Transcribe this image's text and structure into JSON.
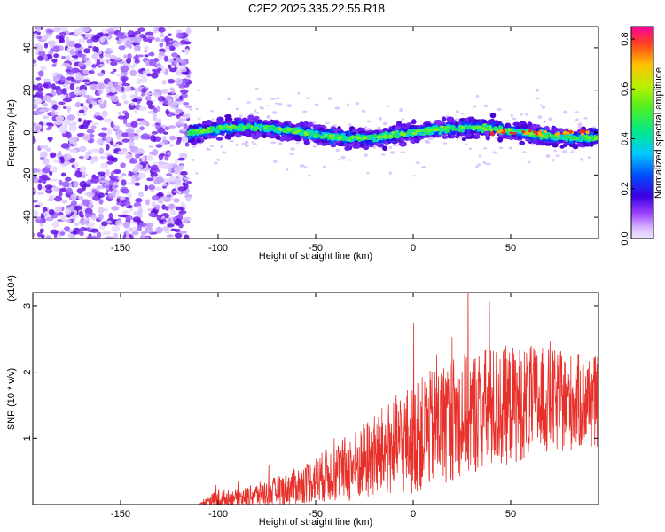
{
  "title": "C2E2.2025.335.22.55.R18",
  "colors": {
    "snr_line": "#e8302a",
    "spectrum_high": "#e8302a",
    "spectrum_mid": "#20d060",
    "spectrum_low": "#5000d8"
  },
  "chart_data": [
    {
      "type": "heatmap",
      "xlabel": "Height of straight line (km)",
      "ylabel": "Frequency (Hz)",
      "xlim": [
        -195,
        95
      ],
      "ylim": [
        -50,
        50
      ],
      "x_ticks": [
        -150,
        -100,
        -50,
        0,
        50
      ],
      "y_ticks": [
        -40,
        -20,
        0,
        20,
        40
      ],
      "noise_region_x": [
        -195,
        -115
      ],
      "signal_band_center_hz": 0,
      "colorbar": {
        "label": "Normalized spectral amplitude",
        "range": [
          0,
          0.85
        ],
        "ticks": [
          "0.0",
          "0.2",
          "0.4",
          "0.6",
          "0.8"
        ]
      },
      "grid": false
    },
    {
      "type": "line",
      "xlabel": "Height of straight line (km)",
      "ylabel": "SNR (10 * v/v)",
      "y_multiplier_label": "(x10⁴)",
      "xlim": [
        -195,
        95
      ],
      "ylim": [
        0,
        3.2
      ],
      "x_ticks": [
        -150,
        -100,
        -50,
        0,
        50
      ],
      "y_ticks": [
        1,
        2,
        3
      ],
      "envelope": {
        "x": [
          -195,
          -110,
          -105,
          -100,
          -90,
          -80,
          -70,
          -60,
          -50,
          -40,
          -30,
          -20,
          -10,
          0,
          10,
          20,
          30,
          40,
          50,
          60,
          70,
          80,
          95
        ],
        "mean": [
          0.0,
          0.0,
          0.05,
          0.08,
          0.1,
          0.15,
          0.2,
          0.28,
          0.38,
          0.48,
          0.58,
          0.72,
          0.88,
          1.0,
          1.15,
          1.3,
          1.4,
          1.45,
          1.5,
          1.55,
          1.55,
          1.55,
          1.55
        ],
        "spread": [
          0.0,
          0.0,
          0.08,
          0.15,
          0.12,
          0.18,
          0.22,
          0.28,
          0.35,
          0.45,
          0.55,
          0.65,
          0.75,
          0.85,
          0.9,
          0.95,
          0.95,
          0.95,
          0.9,
          0.85,
          0.8,
          0.75,
          0.7
        ]
      },
      "grid": false
    }
  ]
}
